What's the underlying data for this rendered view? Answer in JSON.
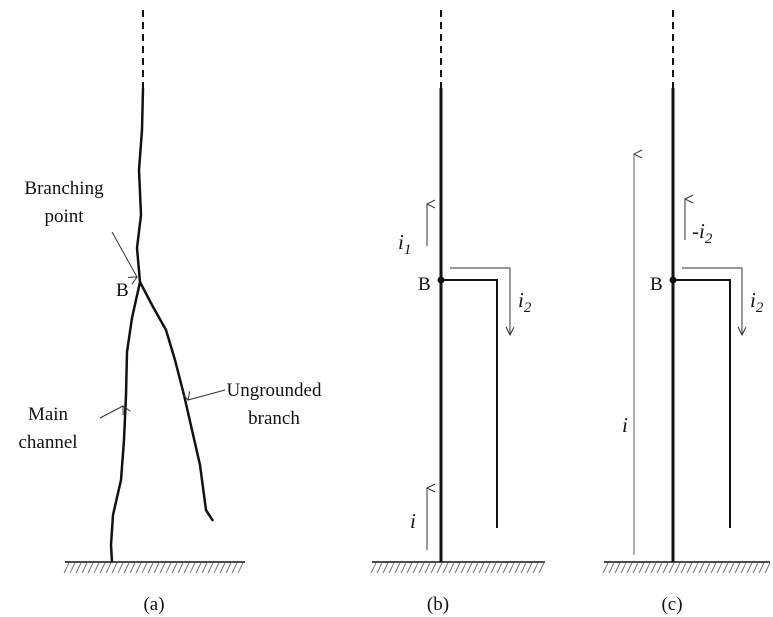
{
  "panels": [
    {
      "caption": "(a)",
      "node": "B",
      "branching_point": [
        "Branching",
        "point"
      ],
      "ungrounded_branch": [
        "Ungrounded",
        "branch"
      ],
      "main_channel": [
        "Main",
        "channel"
      ]
    },
    {
      "caption": "(b)",
      "node": "B",
      "upper_current": {
        "base": "i",
        "sub": "1"
      },
      "branch_current": {
        "base": "i",
        "sub": "2"
      },
      "base_current": "i"
    },
    {
      "caption": "(c)",
      "node": "B",
      "upper_current": {
        "base": "-i",
        "sub": "2"
      },
      "branch_current": {
        "base": "i",
        "sub": "2"
      },
      "base_current": "i"
    }
  ]
}
